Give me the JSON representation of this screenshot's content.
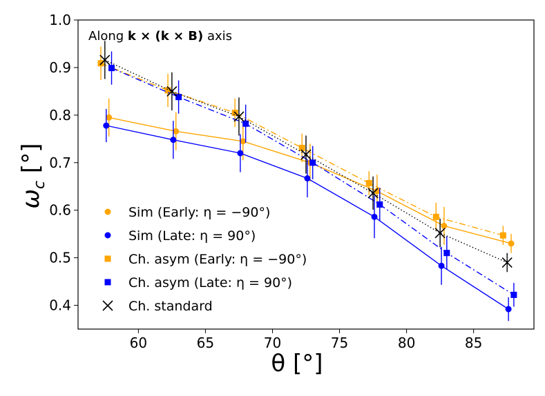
{
  "chart_data": {
    "type": "line",
    "annotation_prefix": "Along ",
    "annotation_bold": "k × (k × B)",
    "annotation_suffix": " axis",
    "xlabel": "θ [°]",
    "ylabel_symbol": "ω",
    "ylabel_sub": "c",
    "ylabel_unit": " [°]",
    "xlim": [
      55.5,
      89.5
    ],
    "ylim": [
      0.35,
      1.0
    ],
    "xticks": [
      60,
      65,
      70,
      75,
      80,
      85
    ],
    "xtick_labels": [
      "60",
      "65",
      "70",
      "75",
      "80",
      "85"
    ],
    "yticks": [
      0.4,
      0.5,
      0.6,
      0.7,
      0.8,
      0.9,
      1.0
    ],
    "ytick_labels": [
      "0.4",
      "0.5",
      "0.6",
      "0.7",
      "0.8",
      "0.9",
      "1.0"
    ],
    "grid": false,
    "legend_position": "lower-left",
    "series": [
      {
        "name": "Sim (Early: η = −90°)",
        "color": "#FFA500",
        "marker": "circle",
        "line": "solid",
        "x": [
          57.8,
          62.8,
          67.8,
          72.8,
          77.8,
          82.8,
          87.8
        ],
        "y": [
          0.795,
          0.766,
          0.745,
          0.7,
          0.64,
          0.567,
          0.53
        ],
        "err": [
          0.04,
          0.04,
          0.04,
          0.04,
          0.035,
          0.04,
          0.02
        ]
      },
      {
        "name": "Sim (Late: η = 90°)",
        "color": "#0000FF",
        "marker": "circle",
        "line": "solid",
        "x": [
          57.6,
          62.6,
          67.6,
          72.6,
          77.6,
          82.6,
          87.6
        ],
        "y": [
          0.778,
          0.748,
          0.72,
          0.667,
          0.586,
          0.483,
          0.392
        ],
        "err": [
          0.035,
          0.04,
          0.04,
          0.04,
          0.045,
          0.04,
          0.025
        ]
      },
      {
        "name": "Ch. asym (Early: η = −90°)",
        "color": "#FFA500",
        "marker": "square",
        "line": "dashdot",
        "x": [
          57.2,
          62.2,
          67.2,
          72.2,
          77.2,
          82.2,
          87.2
        ],
        "y": [
          0.909,
          0.852,
          0.805,
          0.731,
          0.657,
          0.586,
          0.547
        ],
        "err": [
          0.035,
          0.035,
          0.03,
          0.03,
          0.025,
          0.03,
          0.02
        ]
      },
      {
        "name": "Ch. asym (Late: η = 90°)",
        "color": "#0000FF",
        "marker": "square",
        "line": "dashdot",
        "x": [
          58.0,
          63.0,
          68.0,
          73.0,
          78.0,
          83.0,
          88.0
        ],
        "y": [
          0.899,
          0.838,
          0.782,
          0.7,
          0.612,
          0.51,
          0.422
        ],
        "err": [
          0.035,
          0.035,
          0.04,
          0.035,
          0.035,
          0.035,
          0.025
        ]
      },
      {
        "name": "Ch. standard",
        "color": "#000000",
        "marker": "x",
        "line": "dotted",
        "x": [
          57.5,
          62.5,
          67.5,
          72.5,
          77.5,
          82.5,
          87.5
        ],
        "y": [
          0.916,
          0.85,
          0.797,
          0.717,
          0.636,
          0.552,
          0.49
        ],
        "err": [
          0.04,
          0.04,
          0.04,
          0.04,
          0.035,
          0.03,
          0.02
        ]
      }
    ]
  }
}
